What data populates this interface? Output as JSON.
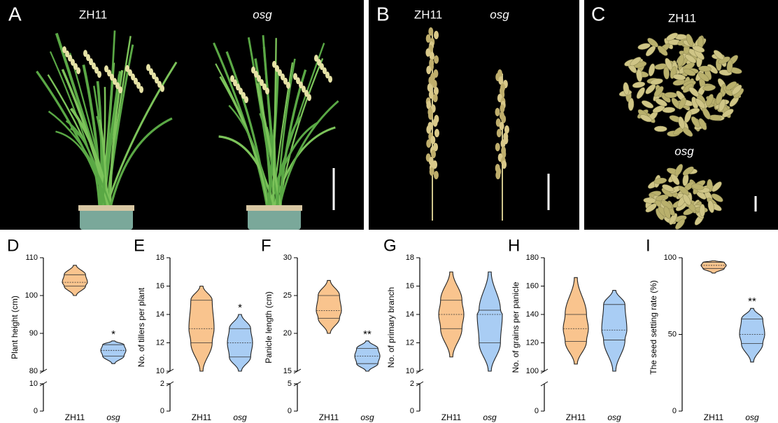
{
  "panels": [
    {
      "letter": "A",
      "labels": [
        "ZH11",
        "osg"
      ]
    },
    {
      "letter": "B",
      "labels": [
        "ZH11",
        "osg"
      ]
    },
    {
      "letter": "C",
      "labels": [
        "ZH11",
        "osg"
      ]
    }
  ],
  "chart_data": [
    {
      "type": "violin",
      "letter": "D",
      "y_label": "Plant height (cm)",
      "categories": [
        "ZH11",
        "osg"
      ],
      "groups": [
        {
          "color": "#f9c48e",
          "min": 100,
          "q1": 102.5,
          "median": 103.5,
          "q3": 105.5,
          "max": 108
        },
        {
          "color": "#a9cdf4",
          "min": 82,
          "q1": 84,
          "median": 85.5,
          "q3": 87,
          "max": 88,
          "significance": "*"
        }
      ],
      "ylim": [
        80,
        110
      ],
      "yticks": [
        80,
        90,
        100,
        110
      ],
      "ylim_lower": [
        0,
        10
      ],
      "yticks_lower": [
        0,
        10
      ]
    },
    {
      "type": "violin",
      "letter": "E",
      "y_label": "No. of tillers per plant",
      "categories": [
        "ZH11",
        "osg"
      ],
      "groups": [
        {
          "color": "#f9c48e",
          "min": 10,
          "q1": 12,
          "median": 13,
          "q3": 15,
          "max": 16
        },
        {
          "color": "#a9cdf4",
          "min": 10,
          "q1": 11,
          "median": 12,
          "q3": 13,
          "max": 14,
          "significance": "*"
        }
      ],
      "ylim": [
        10,
        18
      ],
      "yticks": [
        10,
        12,
        14,
        16,
        18
      ],
      "ylim_lower": [
        0,
        2
      ],
      "yticks_lower": [
        0,
        2
      ]
    },
    {
      "type": "violin",
      "letter": "F",
      "y_label": "Panicle length (cm)",
      "categories": [
        "ZH11",
        "osg"
      ],
      "groups": [
        {
          "color": "#f9c48e",
          "min": 20,
          "q1": 22,
          "median": 23,
          "q3": 25,
          "max": 27
        },
        {
          "color": "#a9cdf4",
          "min": 15,
          "q1": 16,
          "median": 17,
          "q3": 18,
          "max": 19,
          "significance": "**"
        }
      ],
      "ylim": [
        15,
        30
      ],
      "yticks": [
        15,
        20,
        25,
        30
      ],
      "ylim_lower": [
        0,
        5
      ],
      "yticks_lower": [
        0,
        5
      ]
    },
    {
      "type": "violin",
      "letter": "G",
      "y_label": "No. of primary branch",
      "categories": [
        "ZH11",
        "osg"
      ],
      "groups": [
        {
          "color": "#f9c48e",
          "min": 11,
          "q1": 13,
          "median": 14,
          "q3": 15,
          "max": 17
        },
        {
          "color": "#a9cdf4",
          "min": 10,
          "q1": 12,
          "median": 14,
          "q3": 14.3,
          "max": 17
        }
      ],
      "ylim": [
        10,
        18
      ],
      "yticks": [
        10,
        12,
        14,
        16,
        18
      ],
      "ylim_lower": [
        0,
        2
      ],
      "yticks_lower": [
        0,
        2
      ]
    },
    {
      "type": "violin",
      "letter": "H",
      "y_label": "No. of grains per panicle",
      "categories": [
        "ZH11",
        "osg"
      ],
      "groups": [
        {
          "color": "#f9c48e",
          "min": 105,
          "q1": 121,
          "median": 130,
          "q3": 140,
          "max": 166
        },
        {
          "color": "#a9cdf4",
          "min": 100,
          "q1": 122,
          "median": 129,
          "q3": 147,
          "max": 157
        }
      ],
      "ylim": [
        100,
        180
      ],
      "yticks": [
        100,
        120,
        140,
        160,
        180
      ],
      "ylim_lower": [
        0,
        20
      ],
      "yticks_lower": [
        0
      ]
    },
    {
      "type": "violin",
      "letter": "I",
      "y_label": "The seed setting rate (%)",
      "categories": [
        "ZH11",
        "osg"
      ],
      "groups": [
        {
          "color": "#f9c48e",
          "min": 90,
          "q1": 93,
          "median": 95,
          "q3": 97,
          "max": 98
        },
        {
          "color": "#a9cdf4",
          "min": 32,
          "q1": 44,
          "median": 50,
          "q3": 60,
          "max": 67,
          "significance": "**"
        }
      ],
      "ylim": [
        0,
        100
      ],
      "yticks": [
        0,
        50,
        100
      ]
    }
  ]
}
